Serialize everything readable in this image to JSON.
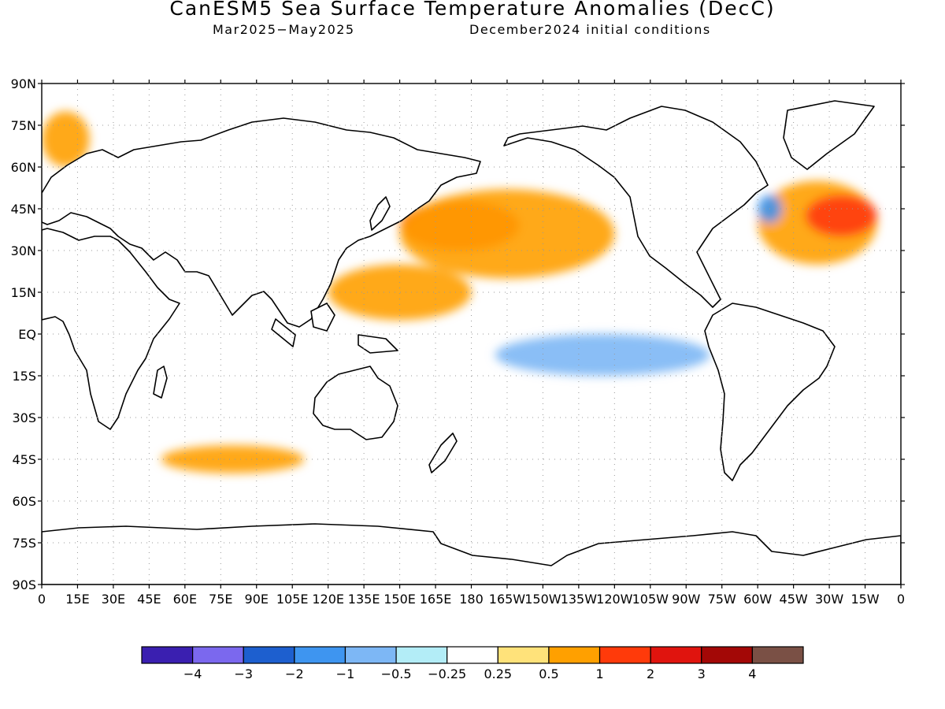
{
  "title": "CanESM5 Sea Surface Temperature Anomalies (DecC)",
  "period": "Mar2025−May2025",
  "init": "December2024 initial conditions",
  "lat_labels": [
    "90N",
    "75N",
    "60N",
    "45N",
    "30N",
    "15N",
    "EQ",
    "15S",
    "30S",
    "45S",
    "60S",
    "75S",
    "90S"
  ],
  "lon_labels": [
    "0",
    "15E",
    "30E",
    "45E",
    "60E",
    "75E",
    "90E",
    "105E",
    "120E",
    "135E",
    "150E",
    "165E",
    "180",
    "165W",
    "150W",
    "135W",
    "120W",
    "105W",
    "90W",
    "75W",
    "60W",
    "45W",
    "30W",
    "15W",
    "0"
  ],
  "colorbar": {
    "colors": [
      "#3a1fb0",
      "#7b68ee",
      "#1d5fcf",
      "#3e95f0",
      "#7db7f5",
      "#b3edf7",
      "#ffffff",
      "#ffe27a",
      "#ffa000",
      "#ff3a0a",
      "#e0140e",
      "#a30806",
      "#7a5045"
    ],
    "ticks": [
      "−4",
      "−3",
      "−2",
      "−1",
      "−0.5",
      "−0.25",
      "0.25",
      "0.5",
      "1",
      "2",
      "3",
      "4"
    ]
  },
  "map_data": {
    "type": "filled-contour map",
    "variable": "Sea surface temperature anomaly",
    "units": "DecC",
    "projection": "cylindrical equidistant",
    "lon_range": [
      0,
      360
    ],
    "lat_range": [
      -90,
      90
    ],
    "anomaly_features": [
      {
        "lon": [
          150,
          200
        ],
        "lat": [
          30,
          48
        ],
        "level": 2
      },
      {
        "lon": [
          150,
          240
        ],
        "lat": [
          20,
          52
        ],
        "level": 1
      },
      {
        "lon": [
          120,
          180
        ],
        "lat": [
          5,
          25
        ],
        "level": 1
      },
      {
        "lon": [
          300,
          350
        ],
        "lat": [
          25,
          55
        ],
        "level": 1
      },
      {
        "lon": [
          320,
          350
        ],
        "lat": [
          35,
          50
        ],
        "level": 2
      },
      {
        "lon": [
          190,
          280
        ],
        "lat": [
          -15,
          0
        ],
        "level": -0.5
      },
      {
        "lon": [
          50,
          110
        ],
        "lat": [
          -50,
          -40
        ],
        "level": 1
      },
      {
        "lon": [
          0,
          20
        ],
        "lat": [
          60,
          80
        ],
        "level": 1
      },
      {
        "lon": [
          300,
          310
        ],
        "lat": [
          40,
          50
        ],
        "level": -1
      }
    ]
  }
}
